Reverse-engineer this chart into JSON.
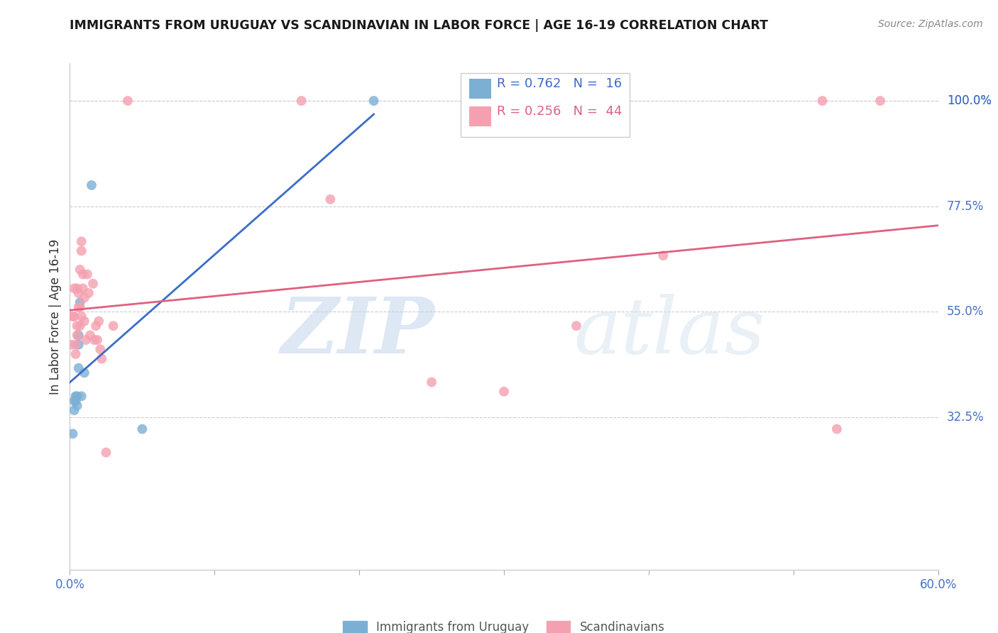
{
  "title": "IMMIGRANTS FROM URUGUAY VS SCANDINAVIAN IN LABOR FORCE | AGE 16-19 CORRELATION CHART",
  "source": "Source: ZipAtlas.com",
  "ylabel": "In Labor Force | Age 16-19",
  "x_min": 0.0,
  "x_max": 0.6,
  "y_min": 0.0,
  "y_max": 1.08,
  "y_tick_labels_right": [
    "100.0%",
    "77.5%",
    "55.0%",
    "32.5%"
  ],
  "y_ticks_right": [
    1.0,
    0.775,
    0.55,
    0.325
  ],
  "legend_blue_label": "Immigrants from Uruguay",
  "legend_pink_label": "Scandinavians",
  "blue_R": "0.762",
  "blue_N": "16",
  "pink_R": "0.256",
  "pink_N": "44",
  "blue_color": "#7bafd4",
  "pink_color": "#f4a0b0",
  "blue_line_color": "#3a6cc8",
  "pink_line_color": "#e06080",
  "blue_scatter_x": [
    0.002,
    0.003,
    0.003,
    0.004,
    0.004,
    0.005,
    0.005,
    0.006,
    0.006,
    0.006,
    0.007,
    0.008,
    0.01,
    0.015,
    0.05,
    0.21
  ],
  "blue_scatter_y": [
    0.29,
    0.36,
    0.34,
    0.37,
    0.36,
    0.37,
    0.35,
    0.43,
    0.5,
    0.48,
    0.57,
    0.37,
    0.42,
    0.82,
    0.3,
    1.0
  ],
  "pink_scatter_x": [
    0.001,
    0.002,
    0.003,
    0.003,
    0.004,
    0.004,
    0.005,
    0.005,
    0.005,
    0.006,
    0.006,
    0.007,
    0.007,
    0.007,
    0.008,
    0.008,
    0.008,
    0.009,
    0.009,
    0.01,
    0.01,
    0.011,
    0.012,
    0.013,
    0.014,
    0.016,
    0.017,
    0.018,
    0.019,
    0.02,
    0.021,
    0.022,
    0.025,
    0.03,
    0.04,
    0.16,
    0.18,
    0.25,
    0.3,
    0.35,
    0.41,
    0.52,
    0.53,
    0.56
  ],
  "pink_scatter_y": [
    0.48,
    0.54,
    0.54,
    0.6,
    0.48,
    0.46,
    0.52,
    0.5,
    0.6,
    0.56,
    0.59,
    0.52,
    0.64,
    0.56,
    0.7,
    0.68,
    0.54,
    0.6,
    0.63,
    0.58,
    0.53,
    0.49,
    0.63,
    0.59,
    0.5,
    0.61,
    0.49,
    0.52,
    0.49,
    0.53,
    0.47,
    0.45,
    0.25,
    0.52,
    1.0,
    1.0,
    0.79,
    0.4,
    0.38,
    0.52,
    0.67,
    1.0,
    0.3,
    1.0
  ],
  "grid_color": "#cccccc",
  "background_color": "#ffffff"
}
